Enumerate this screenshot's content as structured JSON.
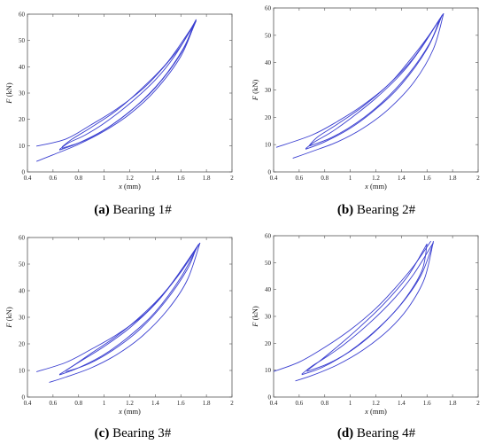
{
  "chart_data": [
    {
      "type": "line",
      "caption_letter": "(a)",
      "caption_text": "Bearing 1#",
      "xlabel_var": "x",
      "xlabel_unit": "(mm)",
      "ylabel_var": "F",
      "ylabel_unit": "(kN)",
      "xlim": [
        0.4,
        2
      ],
      "ylim": [
        0,
        60
      ],
      "xticks": [
        "0.4",
        "0.6",
        "0.8",
        "1",
        "1.2",
        "1.4",
        "1.6",
        "1.8",
        "2"
      ],
      "yticks": [
        "0",
        "10",
        "20",
        "30",
        "40",
        "50",
        "60"
      ],
      "grid": false,
      "color": "#3a3fd0",
      "series": [
        {
          "x": [
            1.72,
            1.6,
            1.45,
            1.3,
            1.1,
            0.9,
            0.7,
            0.47
          ],
          "y": [
            58,
            48,
            39,
            31.5,
            24,
            18,
            12.5,
            9.8
          ]
        },
        {
          "x": [
            0.47,
            0.6,
            0.8,
            1,
            1.2,
            1.4,
            1.6,
            1.72
          ],
          "y": [
            4,
            6.5,
            10.5,
            15.5,
            22,
            31,
            44,
            58
          ]
        },
        {
          "x": [
            1.72,
            1.55,
            1.4,
            1.2,
            1,
            0.85,
            0.72,
            0.65
          ],
          "y": [
            57.5,
            44,
            35,
            26,
            18.5,
            14,
            11,
            8.5
          ]
        },
        {
          "x": [
            0.65,
            0.8,
            1,
            1.2,
            1.4,
            1.6,
            1.72
          ],
          "y": [
            8.3,
            11,
            16,
            23,
            32,
            45,
            57.5
          ]
        },
        {
          "x": [
            1.7,
            1.5,
            1.3,
            1.1,
            0.9,
            0.75,
            0.67
          ],
          "y": [
            56,
            42,
            32,
            23.5,
            17,
            12.5,
            9.5
          ]
        },
        {
          "x": [
            0.67,
            0.85,
            1.05,
            1.25,
            1.45,
            1.62,
            1.7
          ],
          "y": [
            9,
            12,
            17.5,
            25,
            35,
            47,
            56
          ]
        }
      ]
    },
    {
      "type": "line",
      "caption_letter": "(b)",
      "caption_text": "Bearing 2#",
      "xlabel_var": "x",
      "xlabel_unit": "(mm)",
      "ylabel_var": "F",
      "ylabel_unit": "(kN)",
      "xlim": [
        0.4,
        2
      ],
      "ylim": [
        0,
        60
      ],
      "xticks": [
        "0.4",
        "0.6",
        "0.8",
        "1",
        "1.2",
        "1.4",
        "1.6",
        "1.8",
        "2"
      ],
      "yticks": [
        "0",
        "10",
        "20",
        "30",
        "40",
        "50",
        "60"
      ],
      "grid": false,
      "color": "#3a3fd0",
      "series": [
        {
          "x": [
            1.73,
            1.6,
            1.45,
            1.3,
            1.1,
            0.9,
            0.7,
            0.42
          ],
          "y": [
            58,
            49,
            40,
            32,
            24.5,
            18.5,
            13.5,
            9
          ]
        },
        {
          "x": [
            0.55,
            0.7,
            0.9,
            1.1,
            1.3,
            1.5,
            1.65,
            1.73
          ],
          "y": [
            5,
            7.5,
            11,
            16,
            23,
            33,
            45,
            58
          ]
        },
        {
          "x": [
            1.72,
            1.55,
            1.4,
            1.2,
            1,
            0.85,
            0.72,
            0.65
          ],
          "y": [
            57.5,
            45,
            36,
            27,
            19.5,
            14.5,
            11,
            8.5
          ]
        },
        {
          "x": [
            0.65,
            0.8,
            1,
            1.2,
            1.4,
            1.6,
            1.72
          ],
          "y": [
            8.3,
            11,
            16,
            23,
            32,
            45,
            57.5
          ]
        },
        {
          "x": [
            1.7,
            1.5,
            1.3,
            1.1,
            0.9,
            0.75,
            0.68
          ],
          "y": [
            56,
            42,
            32,
            24,
            17.5,
            13,
            9.8
          ]
        },
        {
          "x": [
            0.68,
            0.85,
            1.05,
            1.25,
            1.45,
            1.62,
            1.7
          ],
          "y": [
            9.5,
            12.5,
            18,
            25.5,
            35.5,
            47,
            56
          ]
        }
      ]
    },
    {
      "type": "line",
      "caption_letter": "(c)",
      "caption_text": "Bearing 3#",
      "xlabel_var": "x",
      "xlabel_unit": "(mm)",
      "ylabel_var": "F",
      "ylabel_unit": "(kN)",
      "xlim": [
        0.4,
        2
      ],
      "ylim": [
        0,
        60
      ],
      "xticks": [
        "0.4",
        "0.6",
        "0.8",
        "1",
        "1.2",
        "1.4",
        "1.6",
        "1.8",
        "2"
      ],
      "yticks": [
        "0",
        "10",
        "20",
        "30",
        "40",
        "50",
        "60"
      ],
      "grid": false,
      "color": "#3a3fd0",
      "series": [
        {
          "x": [
            1.75,
            1.6,
            1.45,
            1.3,
            1.1,
            0.9,
            0.7,
            0.47
          ],
          "y": [
            58,
            47,
            38,
            30.5,
            23.5,
            18,
            13,
            9.5
          ]
        },
        {
          "x": [
            0.57,
            0.7,
            0.9,
            1.1,
            1.3,
            1.5,
            1.65,
            1.75
          ],
          "y": [
            5.5,
            7.5,
            11,
            16,
            23,
            33,
            44,
            58
          ]
        },
        {
          "x": [
            1.74,
            1.55,
            1.4,
            1.2,
            1,
            0.85,
            0.75,
            0.65
          ],
          "y": [
            57.5,
            44,
            35,
            26,
            19,
            14.5,
            11.5,
            8.5
          ]
        },
        {
          "x": [
            0.65,
            0.8,
            1,
            1.2,
            1.4,
            1.6,
            1.74
          ],
          "y": [
            8.3,
            11,
            16,
            23,
            32,
            45,
            57.5
          ]
        },
        {
          "x": [
            1.72,
            1.5,
            1.3,
            1.1,
            0.9,
            0.78,
            0.7
          ],
          "y": [
            56,
            41,
            31,
            23,
            16.5,
            12.5,
            10
          ]
        },
        {
          "x": [
            0.7,
            0.88,
            1.08,
            1.28,
            1.48,
            1.65,
            1.72
          ],
          "y": [
            9.5,
            12.5,
            18,
            25.5,
            36,
            48,
            56
          ]
        }
      ]
    },
    {
      "type": "line",
      "caption_letter": "(d)",
      "caption_text": "Bearing 4#",
      "xlabel_var": "x",
      "xlabel_unit": "(mm)",
      "ylabel_var": "F",
      "ylabel_unit": "(kN)",
      "xlim": [
        0.4,
        2
      ],
      "ylim": [
        0,
        60
      ],
      "xticks": [
        "0.4",
        "0.6",
        "0.8",
        "1",
        "1.2",
        "1.4",
        "1.6",
        "1.8",
        "2"
      ],
      "yticks": [
        "0",
        "10",
        "20",
        "30",
        "40",
        "50",
        "60"
      ],
      "grid": false,
      "color": "#3a3fd0",
      "series": [
        {
          "x": [
            1.63,
            1.5,
            1.35,
            1.2,
            1,
            0.8,
            0.6,
            0.4
          ],
          "y": [
            58,
            49,
            40.5,
            33,
            25,
            18.5,
            13,
            9.5
          ]
        },
        {
          "x": [
            0.57,
            0.7,
            0.9,
            1.1,
            1.3,
            1.45,
            1.58,
            1.65
          ],
          "y": [
            6,
            8,
            12,
            17.5,
            25,
            33,
            44,
            58
          ]
        },
        {
          "x": [
            1.65,
            1.5,
            1.35,
            1.15,
            0.95,
            0.8,
            0.7,
            0.62
          ],
          "y": [
            57.5,
            46,
            37,
            27.5,
            19.5,
            14.5,
            11.5,
            8.5
          ]
        },
        {
          "x": [
            0.62,
            0.78,
            0.98,
            1.18,
            1.38,
            1.55,
            1.65
          ],
          "y": [
            8.3,
            11,
            16.5,
            24,
            33.5,
            45,
            57.5
          ]
        },
        {
          "x": [
            1.6,
            1.45,
            1.25,
            1.05,
            0.88,
            0.75,
            0.66
          ],
          "y": [
            57,
            45,
            34,
            25,
            18,
            13,
            9.8
          ]
        },
        {
          "x": [
            0.66,
            0.83,
            1.03,
            1.23,
            1.42,
            1.56,
            1.6
          ],
          "y": [
            9.5,
            12.5,
            18,
            26,
            36,
            47,
            57
          ]
        }
      ]
    }
  ]
}
